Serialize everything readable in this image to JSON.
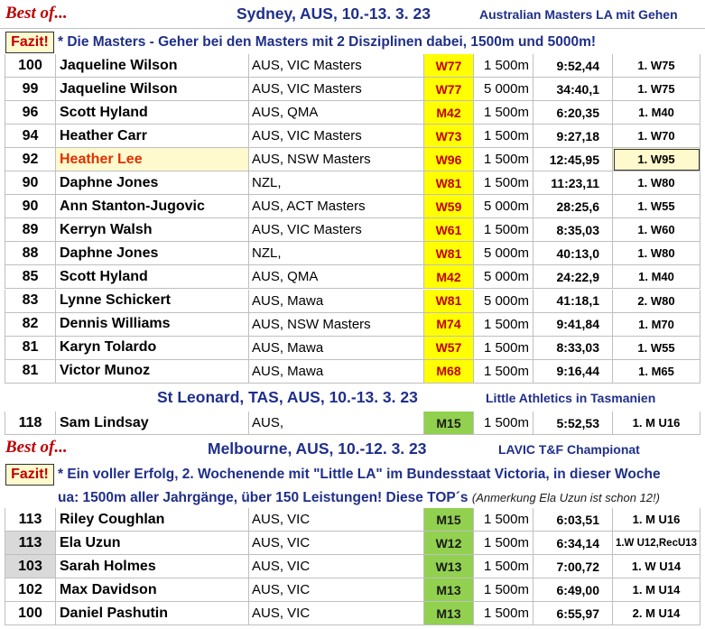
{
  "sections": [
    {
      "best_of": "Best of...",
      "venue": "Sydney, AUS, 10.-13. 3. 23",
      "subtitle": "Australian Masters LA mit Gehen",
      "fazit_label": "Fazit!",
      "note_lines": [
        "* Die Masters - Geher bei den Masters mit 2 Disziplinen dabei, 1500m und 5000m!"
      ],
      "rows": [
        {
          "points": "100",
          "name": "Jaqueline Wilson",
          "club": "AUS, VIC Masters",
          "class": "W77",
          "dist": "1 500m",
          "time": "9:52,44",
          "place": "1. W75"
        },
        {
          "points": "99",
          "name": "Jaqueline Wilson",
          "club": "AUS, VIC Masters",
          "class": "W77",
          "dist": "5 000m",
          "time": "34:40,1",
          "place": "1. W75"
        },
        {
          "points": "96",
          "name": "Scott Hyland",
          "club": "AUS, QMA",
          "class": "M42",
          "dist": "1 500m",
          "time": "6:20,35",
          "place": "1. M40"
        },
        {
          "points": "94",
          "name": "Heather Carr",
          "club": "AUS, VIC Masters",
          "class": "W73",
          "dist": "1 500m",
          "time": "9:27,18",
          "place": "1. W70"
        },
        {
          "points": "92",
          "name": "Heather Lee",
          "club": "AUS, NSW Masters",
          "class": "W96",
          "dist": "1 500m",
          "time": "12:45,95",
          "place": "1. W95"
        },
        {
          "points": "90",
          "name": "Daphne Jones",
          "club": "NZL,",
          "class": "W81",
          "dist": "1 500m",
          "time": "11:23,11",
          "place": "1. W80"
        },
        {
          "points": "90",
          "name": "Ann Stanton-Jugovic",
          "club": "AUS, ACT Masters",
          "class": "W59",
          "dist": "5 000m",
          "time": "28:25,6",
          "place": "1. W55"
        },
        {
          "points": "89",
          "name": "Kerryn Walsh",
          "club": "AUS, VIC Masters",
          "class": "W61",
          "dist": "1 500m",
          "time": "8:35,03",
          "place": "1. W60"
        },
        {
          "points": "88",
          "name": "Daphne Jones",
          "club": "NZL,",
          "class": "W81",
          "dist": "5 000m",
          "time": "40:13,0",
          "place": "1. W80"
        },
        {
          "points": "85",
          "name": "Scott Hyland",
          "club": "AUS, QMA",
          "class": "M42",
          "dist": "5 000m",
          "time": "24:22,9",
          "place": "1. M40"
        },
        {
          "points": "83",
          "name": "Lynne Schickert",
          "club": "AUS, Mawa",
          "class": "W81",
          "dist": "5 000m",
          "time": "41:18,1",
          "place": "2. W80"
        },
        {
          "points": "82",
          "name": "Dennis Williams",
          "club": "AUS, NSW Masters",
          "class": "M74",
          "dist": "1 500m",
          "time": "9:41,84",
          "place": "1. M70"
        },
        {
          "points": "81",
          "name": "Karyn Tolardo",
          "club": "AUS, Mawa",
          "class": "W57",
          "dist": "1 500m",
          "time": "8:33,03",
          "place": "1. W55"
        },
        {
          "points": "81",
          "name": "Victor Munoz",
          "club": "AUS, Mawa",
          "class": "M68",
          "dist": "1 500m",
          "time": "9:16,44",
          "place": "1. M65"
        }
      ]
    },
    {
      "venue": "St Leonard, TAS, AUS, 10.-13. 3. 23",
      "subtitle": "Little Athletics in Tasmanien",
      "rows": [
        {
          "points": "118",
          "name": "Sam Lindsay",
          "club": "AUS,",
          "class": "M15",
          "dist": "1 500m",
          "time": "5:52,53",
          "place": "1. M U16"
        }
      ]
    },
    {
      "best_of": "Best of...",
      "venue": "Melbourne, AUS, 10.-12. 3. 23",
      "subtitle": "LAVIC T&F Championat",
      "fazit_label": "Fazit!",
      "note_lines": [
        "* Ein voller Erfolg, 2. Wochenende mit  \"Little LA\" im Bundesstaat Victoria, in dieser Woche",
        "ua: 1500m aller Jahrgänge, über 150 Leistungen! Diese TOP´s"
      ],
      "note_aside": "(Anmerkung Ela Uzun ist schon 12!)",
      "rows": [
        {
          "points": "113",
          "name": "Riley Coughlan",
          "club": "AUS, VIC",
          "class": "M15",
          "dist": "1 500m",
          "time": "6:03,51",
          "place": "1. M U16"
        },
        {
          "points": "113",
          "name": "Ela Uzun",
          "club": "AUS, VIC",
          "class": "W12",
          "dist": "1 500m",
          "time": "6:34,14",
          "place": "1.W U12,RecU13"
        },
        {
          "points": "103",
          "name": "Sarah Holmes",
          "club": "AUS, VIC",
          "class": "W13",
          "dist": "1 500m",
          "time": "7:00,72",
          "place": "1. W U14"
        },
        {
          "points": "102",
          "name": "Max Davidson",
          "club": "AUS, VIC",
          "class": "M13",
          "dist": "1 500m",
          "time": "6:49,00",
          "place": "1. M U14"
        },
        {
          "points": "100",
          "name": "Daniel Pashutin",
          "club": "AUS, VIC",
          "class": "M13",
          "dist": "1 500m",
          "time": "6:55,97",
          "place": "2. M U14"
        }
      ]
    }
  ],
  "colors": {
    "class_yellow": "#ffff00",
    "class_green": "#92d050",
    "title_blue": "#1f2f8a",
    "red": "#c00000"
  }
}
